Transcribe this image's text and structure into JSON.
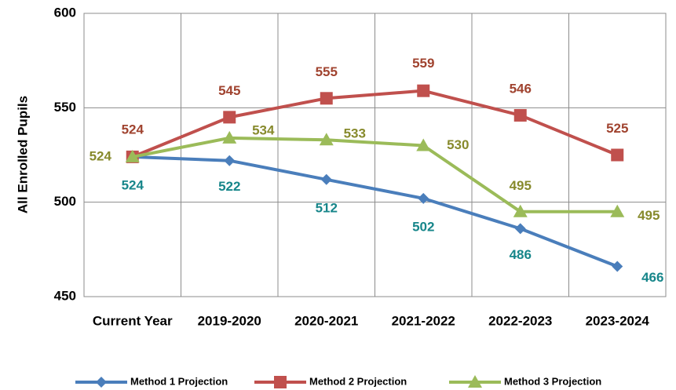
{
  "chart_data": {
    "type": "line",
    "y_label": "All Enrolled Pupils",
    "categories": [
      "Current Year",
      "2019-2020",
      "2020-2021",
      "2021-2022",
      "2022-2023",
      "2023-2024"
    ],
    "series": [
      {
        "name": "Method 1 Projection",
        "color": "#4a7ebb",
        "label_color": "#17868a",
        "marker": "diamond",
        "values": [
          524,
          522,
          512,
          502,
          486,
          466
        ]
      },
      {
        "name": "Method 2 Projection",
        "color": "#c0504d",
        "label_color": "#a0432f",
        "marker": "square",
        "values": [
          524,
          545,
          555,
          559,
          546,
          525
        ]
      },
      {
        "name": "Method 3 Projection",
        "color": "#9bbb59",
        "label_color": "#878a2c",
        "marker": "triangle",
        "values": [
          524,
          534,
          533,
          530,
          495,
          495
        ]
      }
    ],
    "ylim": [
      450,
      600
    ],
    "yticks": [
      450,
      500,
      550,
      600
    ],
    "grid": true,
    "legend": "bottom"
  }
}
